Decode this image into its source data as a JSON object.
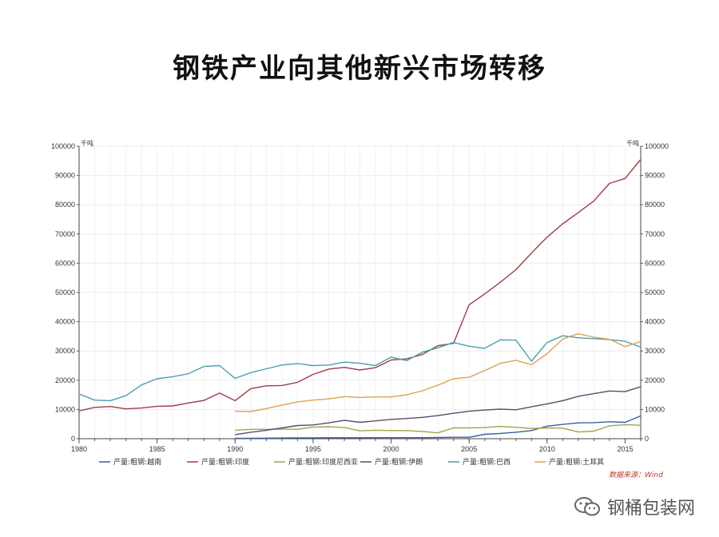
{
  "title": "钢铁产业向其他新兴市场转移",
  "watermark": "钢桶包装网",
  "chart_data": {
    "type": "line",
    "left_unit": "千吨",
    "right_unit": "千吨",
    "x_ticks": [
      "1980",
      "1985",
      "1990",
      "1995",
      "2000",
      "2005",
      "2010",
      "2015"
    ],
    "y_ticks": [
      "0",
      "10000",
      "20000",
      "30000",
      "40000",
      "50000",
      "60000",
      "70000",
      "80000",
      "90000",
      "100000"
    ],
    "xlim": [
      1980,
      2016
    ],
    "ylim": [
      0,
      100000
    ],
    "grid": true,
    "legend_position": "bottom",
    "source": "数据来源：Wind",
    "series": [
      {
        "name": "产量:粗钢:越南",
        "color": "#3b5ea8",
        "x": [
          1990,
          1991,
          1992,
          1993,
          1994,
          1995,
          1996,
          1997,
          1998,
          1999,
          2000,
          2001,
          2002,
          2003,
          2004,
          2005,
          2006,
          2007,
          2008,
          2009,
          2010,
          2011,
          2012,
          2013,
          2014,
          2015,
          2016
        ],
        "values": [
          100,
          150,
          200,
          250,
          300,
          300,
          320,
          330,
          330,
          350,
          350,
          350,
          350,
          400,
          500,
          500,
          1500,
          1800,
          2200,
          2800,
          4300,
          4900,
          5400,
          5500,
          5800,
          5600,
          7800
        ]
      },
      {
        "name": "产量:粗钢:印度",
        "color": "#a03d45",
        "x": [
          1980,
          1981,
          1982,
          1983,
          1984,
          1985,
          1986,
          1987,
          1988,
          1989,
          1990,
          1991,
          1992,
          1993,
          1994,
          1995,
          1996,
          1997,
          1998,
          1999,
          2000,
          2001,
          2002,
          2003,
          2004,
          2005,
          2006,
          2007,
          2008,
          2009,
          2010,
          2011,
          2012,
          2013,
          2014,
          2015,
          2016
        ],
        "values": [
          9500,
          10700,
          11000,
          10200,
          10500,
          11100,
          11200,
          12200,
          13100,
          15600,
          13000,
          17100,
          18100,
          18200,
          19300,
          22000,
          23800,
          24400,
          23500,
          24300,
          26900,
          27300,
          28800,
          31800,
          32600,
          45800,
          49500,
          53500,
          57800,
          63500,
          68900,
          73500,
          77300,
          81300,
          87300,
          89000,
          95500
        ]
      },
      {
        "name": "产量:粗钢:印度尼西亚",
        "color": "#a3a34a",
        "x": [
          1990,
          1991,
          1992,
          1993,
          1994,
          1995,
          1996,
          1997,
          1998,
          1999,
          2000,
          2001,
          2002,
          2003,
          2004,
          2005,
          2006,
          2007,
          2008,
          2009,
          2010,
          2011,
          2012,
          2013,
          2014,
          2015,
          2016
        ],
        "values": [
          2900,
          3200,
          3200,
          3300,
          3200,
          4000,
          4100,
          3800,
          2700,
          2900,
          2800,
          2800,
          2500,
          2000,
          3700,
          3700,
          3800,
          4200,
          3900,
          3500,
          3700,
          3600,
          2300,
          2600,
          4400,
          4800,
          4600
        ]
      },
      {
        "name": "产量:粗钢:伊朗",
        "color": "#5e4a6e",
        "x": [
          1990,
          1991,
          1992,
          1993,
          1994,
          1995,
          1996,
          1997,
          1998,
          1999,
          2000,
          2001,
          2002,
          2003,
          2004,
          2005,
          2006,
          2007,
          2008,
          2009,
          2010,
          2011,
          2012,
          2013,
          2014,
          2015,
          2016
        ],
        "values": [
          1400,
          2200,
          2900,
          3700,
          4500,
          4700,
          5400,
          6300,
          5600,
          6100,
          6600,
          6900,
          7300,
          7900,
          8700,
          9400,
          9800,
          10100,
          9900,
          10900,
          11900,
          13000,
          14500,
          15400,
          16300,
          16100,
          17800
        ]
      },
      {
        "name": "产量:粗钢:巴西",
        "color": "#4aa0b0",
        "x": [
          1980,
          1981,
          1982,
          1983,
          1984,
          1985,
          1986,
          1987,
          1988,
          1989,
          1990,
          1991,
          1992,
          1993,
          1994,
          1995,
          1996,
          1997,
          1998,
          1999,
          2000,
          2001,
          2002,
          2003,
          2004,
          2005,
          2006,
          2007,
          2008,
          2009,
          2010,
          2011,
          2012,
          2013,
          2014,
          2015,
          2016
        ],
        "values": [
          15300,
          13200,
          13000,
          14700,
          18400,
          20500,
          21200,
          22200,
          24700,
          25000,
          20600,
          22600,
          23900,
          25200,
          25700,
          25000,
          25200,
          26200,
          25800,
          25000,
          27900,
          26700,
          29600,
          31100,
          32900,
          31600,
          30900,
          33800,
          33700,
          26500,
          32900,
          35200,
          34500,
          34200,
          33900,
          33300,
          31300
        ]
      },
      {
        "name": "产量:粗钢:土耳其",
        "color": "#e0a050",
        "x": [
          1990,
          1991,
          1992,
          1993,
          1994,
          1995,
          1996,
          1997,
          1998,
          1999,
          2000,
          2001,
          2002,
          2003,
          2004,
          2005,
          2006,
          2007,
          2008,
          2009,
          2010,
          2011,
          2012,
          2013,
          2014,
          2015,
          2016
        ],
        "values": [
          9400,
          9300,
          10300,
          11500,
          12600,
          13200,
          13600,
          14400,
          14100,
          14300,
          14300,
          15000,
          16400,
          18300,
          20500,
          21000,
          23300,
          25800,
          26800,
          25300,
          29100,
          34100,
          35900,
          34700,
          34000,
          31500,
          33200
        ]
      }
    ]
  }
}
